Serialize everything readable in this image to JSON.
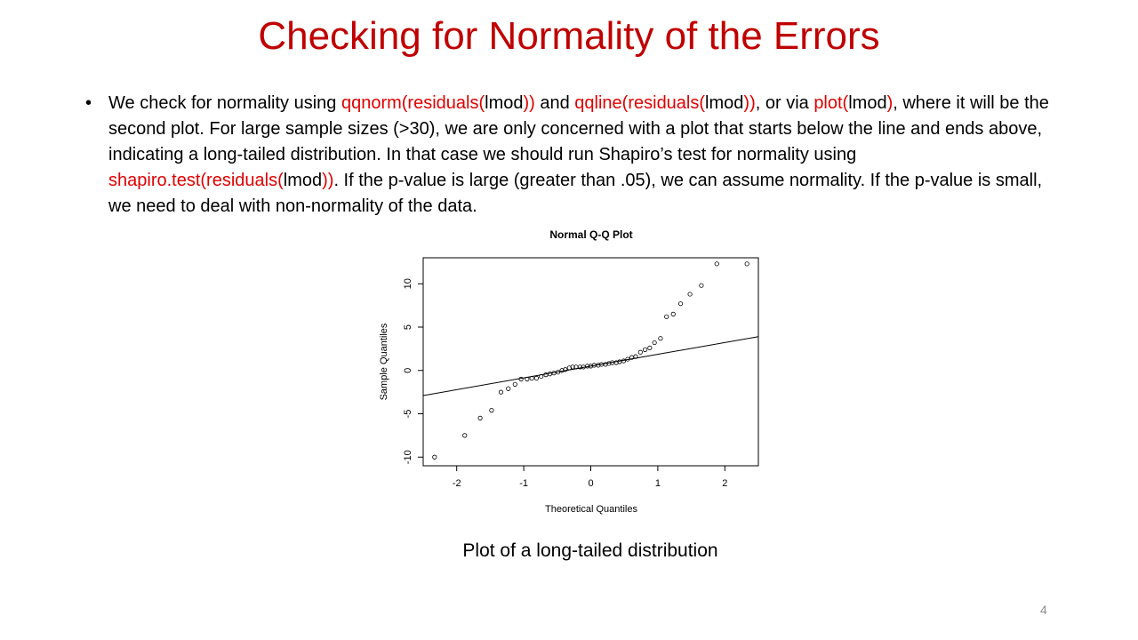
{
  "slide": {
    "title": "Checking for Normality of the Errors",
    "bullet_marker": "•",
    "bullet_parts": [
      {
        "text": "We check for normality using ",
        "code": false
      },
      {
        "text": "qqnorm(residuals(",
        "code": true
      },
      {
        "text": "lmod",
        "code": false
      },
      {
        "text": "))",
        "code": true
      },
      {
        "text": " and ",
        "code": false
      },
      {
        "text": "qqline(residuals(",
        "code": true
      },
      {
        "text": "lmod",
        "code": false
      },
      {
        "text": "))",
        "code": true
      },
      {
        "text": ", or via ",
        "code": false
      },
      {
        "text": "plot(",
        "code": true
      },
      {
        "text": "lmod",
        "code": false
      },
      {
        "text": ")",
        "code": true
      },
      {
        "text": ", where it will be the second plot. For large sample sizes (>30), we are only concerned with a plot that starts below the line and ends above, indicating a long-tailed distribution. In that case we should run Shapiro’s test for normality using ",
        "code": false
      },
      {
        "text": "shapiro.test(residuals(",
        "code": true
      },
      {
        "text": "lmod",
        "code": false
      },
      {
        "text": "))",
        "code": true
      },
      {
        "text": ". If the p-value is large (greater than .05), we can assume normality. If the p-value is small, we need to deal with non-normality of the data.",
        "code": false
      }
    ],
    "caption": "Plot of a long-tailed distribution",
    "page_number": "4",
    "colors": {
      "title": "#c00000",
      "code": "#e00000",
      "page_number": "#8c8c8c"
    }
  },
  "chart_data": {
    "type": "scatter",
    "title": "Normal Q-Q Plot",
    "xlabel": "Theoretical Quantiles",
    "ylabel": "Sample Quantiles",
    "xlim": [
      -2.5,
      2.5
    ],
    "ylim": [
      -11,
      13
    ],
    "xticks": [
      -2,
      -1,
      0,
      1,
      2
    ],
    "yticks": [
      -10,
      -5,
      0,
      5,
      10
    ],
    "grid": false,
    "reference_line": {
      "x": [
        -2.5,
        2.5
      ],
      "y": [
        -2.9,
        3.9
      ]
    },
    "points": {
      "x": [
        -2.33,
        -1.88,
        -1.65,
        -1.48,
        -1.34,
        -1.23,
        -1.13,
        -1.04,
        -0.95,
        -0.88,
        -0.81,
        -0.74,
        -0.67,
        -0.61,
        -0.55,
        -0.49,
        -0.43,
        -0.38,
        -0.32,
        -0.27,
        -0.22,
        -0.16,
        -0.11,
        -0.05,
        0.0,
        0.05,
        0.11,
        0.16,
        0.22,
        0.27,
        0.32,
        0.38,
        0.43,
        0.49,
        0.55,
        0.61,
        0.67,
        0.74,
        0.81,
        0.88,
        0.95,
        1.04,
        1.13,
        1.23,
        1.34,
        1.48,
        1.65,
        1.88,
        2.33
      ],
      "y": [
        -10.0,
        -7.5,
        -5.5,
        -4.6,
        -2.5,
        -2.1,
        -1.6,
        -1.0,
        -1.0,
        -0.9,
        -0.9,
        -0.7,
        -0.5,
        -0.4,
        -0.3,
        -0.2,
        0.0,
        0.1,
        0.3,
        0.4,
        0.4,
        0.4,
        0.4,
        0.5,
        0.5,
        0.6,
        0.6,
        0.7,
        0.7,
        0.8,
        0.9,
        0.9,
        1.0,
        1.1,
        1.3,
        1.5,
        1.6,
        2.1,
        2.4,
        2.6,
        3.2,
        3.7,
        6.2,
        6.5,
        7.7,
        8.8,
        9.8,
        12.3,
        12.3
      ]
    }
  }
}
